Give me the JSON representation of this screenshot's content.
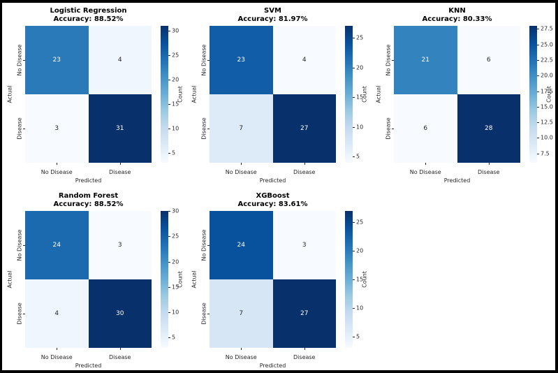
{
  "figure": {
    "background": "#000000",
    "canvas_color": "#ffffff",
    "annot_color_dark": "#262626",
    "annot_color_light": "#ffffff",
    "colormap_name": "Blues",
    "colormap_stops": [
      "#f7fbff",
      "#deebf7",
      "#c6dbef",
      "#9ecae1",
      "#6baed6",
      "#4292c6",
      "#2171b5",
      "#08519c",
      "#08306b"
    ]
  },
  "chart_data": [
    {
      "type": "heatmap",
      "title": "Logistic Regression",
      "subtitle": "Accuracy: 88.52%",
      "xlabel": "Predicted",
      "ylabel": "Actual",
      "x_categories": [
        "No Disease",
        "Disease"
      ],
      "y_categories": [
        "No Disease",
        "Disease"
      ],
      "values": [
        [
          23,
          4
        ],
        [
          3,
          31
        ]
      ],
      "vmin": 3,
      "vmax": 31,
      "colorbar_label": "Count",
      "colorbar_ticks": [
        5,
        10,
        15,
        20,
        25,
        30
      ],
      "colorbar_tick_labels": [
        "5",
        "10",
        "15",
        "20",
        "25",
        "30"
      ]
    },
    {
      "type": "heatmap",
      "title": "SVM",
      "subtitle": "Accuracy: 81.97%",
      "xlabel": "Predicted",
      "ylabel": "Actual",
      "x_categories": [
        "No Disease",
        "Disease"
      ],
      "y_categories": [
        "No Disease",
        "Disease"
      ],
      "values": [
        [
          23,
          4
        ],
        [
          7,
          27
        ]
      ],
      "vmin": 4,
      "vmax": 27,
      "colorbar_label": "Count",
      "colorbar_ticks": [
        5,
        10,
        15,
        20,
        25
      ],
      "colorbar_tick_labels": [
        "5",
        "10",
        "15",
        "20",
        "25"
      ]
    },
    {
      "type": "heatmap",
      "title": "KNN",
      "subtitle": "Accuracy: 80.33%",
      "xlabel": "Predicted",
      "ylabel": "Actual",
      "x_categories": [
        "No Disease",
        "Disease"
      ],
      "y_categories": [
        "No Disease",
        "Disease"
      ],
      "values": [
        [
          21,
          6
        ],
        [
          6,
          28
        ]
      ],
      "vmin": 6,
      "vmax": 28,
      "colorbar_label": "Count",
      "colorbar_ticks": [
        7.5,
        10,
        12.5,
        15,
        17.5,
        20,
        22.5,
        25,
        27.5
      ],
      "colorbar_tick_labels": [
        "7.5",
        "10.0",
        "12.5",
        "15.0",
        "17.5",
        "20.0",
        "22.5",
        "25.0",
        "27.5"
      ]
    },
    {
      "type": "heatmap",
      "title": "Random Forest",
      "subtitle": "Accuracy: 88.52%",
      "xlabel": "Predicted",
      "ylabel": "Actual",
      "x_categories": [
        "No Disease",
        "Disease"
      ],
      "y_categories": [
        "No Disease",
        "Disease"
      ],
      "values": [
        [
          24,
          3
        ],
        [
          4,
          30
        ]
      ],
      "vmin": 3,
      "vmax": 30,
      "colorbar_label": "Count",
      "colorbar_ticks": [
        5,
        10,
        15,
        20,
        25,
        30
      ],
      "colorbar_tick_labels": [
        "5",
        "10",
        "15",
        "20",
        "25",
        "30"
      ]
    },
    {
      "type": "heatmap",
      "title": "XGBoost",
      "subtitle": "Accuracy: 83.61%",
      "xlabel": "Predicted",
      "ylabel": "Actual",
      "x_categories": [
        "No Disease",
        "Disease"
      ],
      "y_categories": [
        "No Disease",
        "Disease"
      ],
      "values": [
        [
          24,
          3
        ],
        [
          7,
          27
        ]
      ],
      "vmin": 3,
      "vmax": 27,
      "colorbar_label": "Count",
      "colorbar_ticks": [
        5,
        10,
        15,
        20,
        25
      ],
      "colorbar_tick_labels": [
        "5",
        "10",
        "15",
        "20",
        "25"
      ]
    }
  ]
}
